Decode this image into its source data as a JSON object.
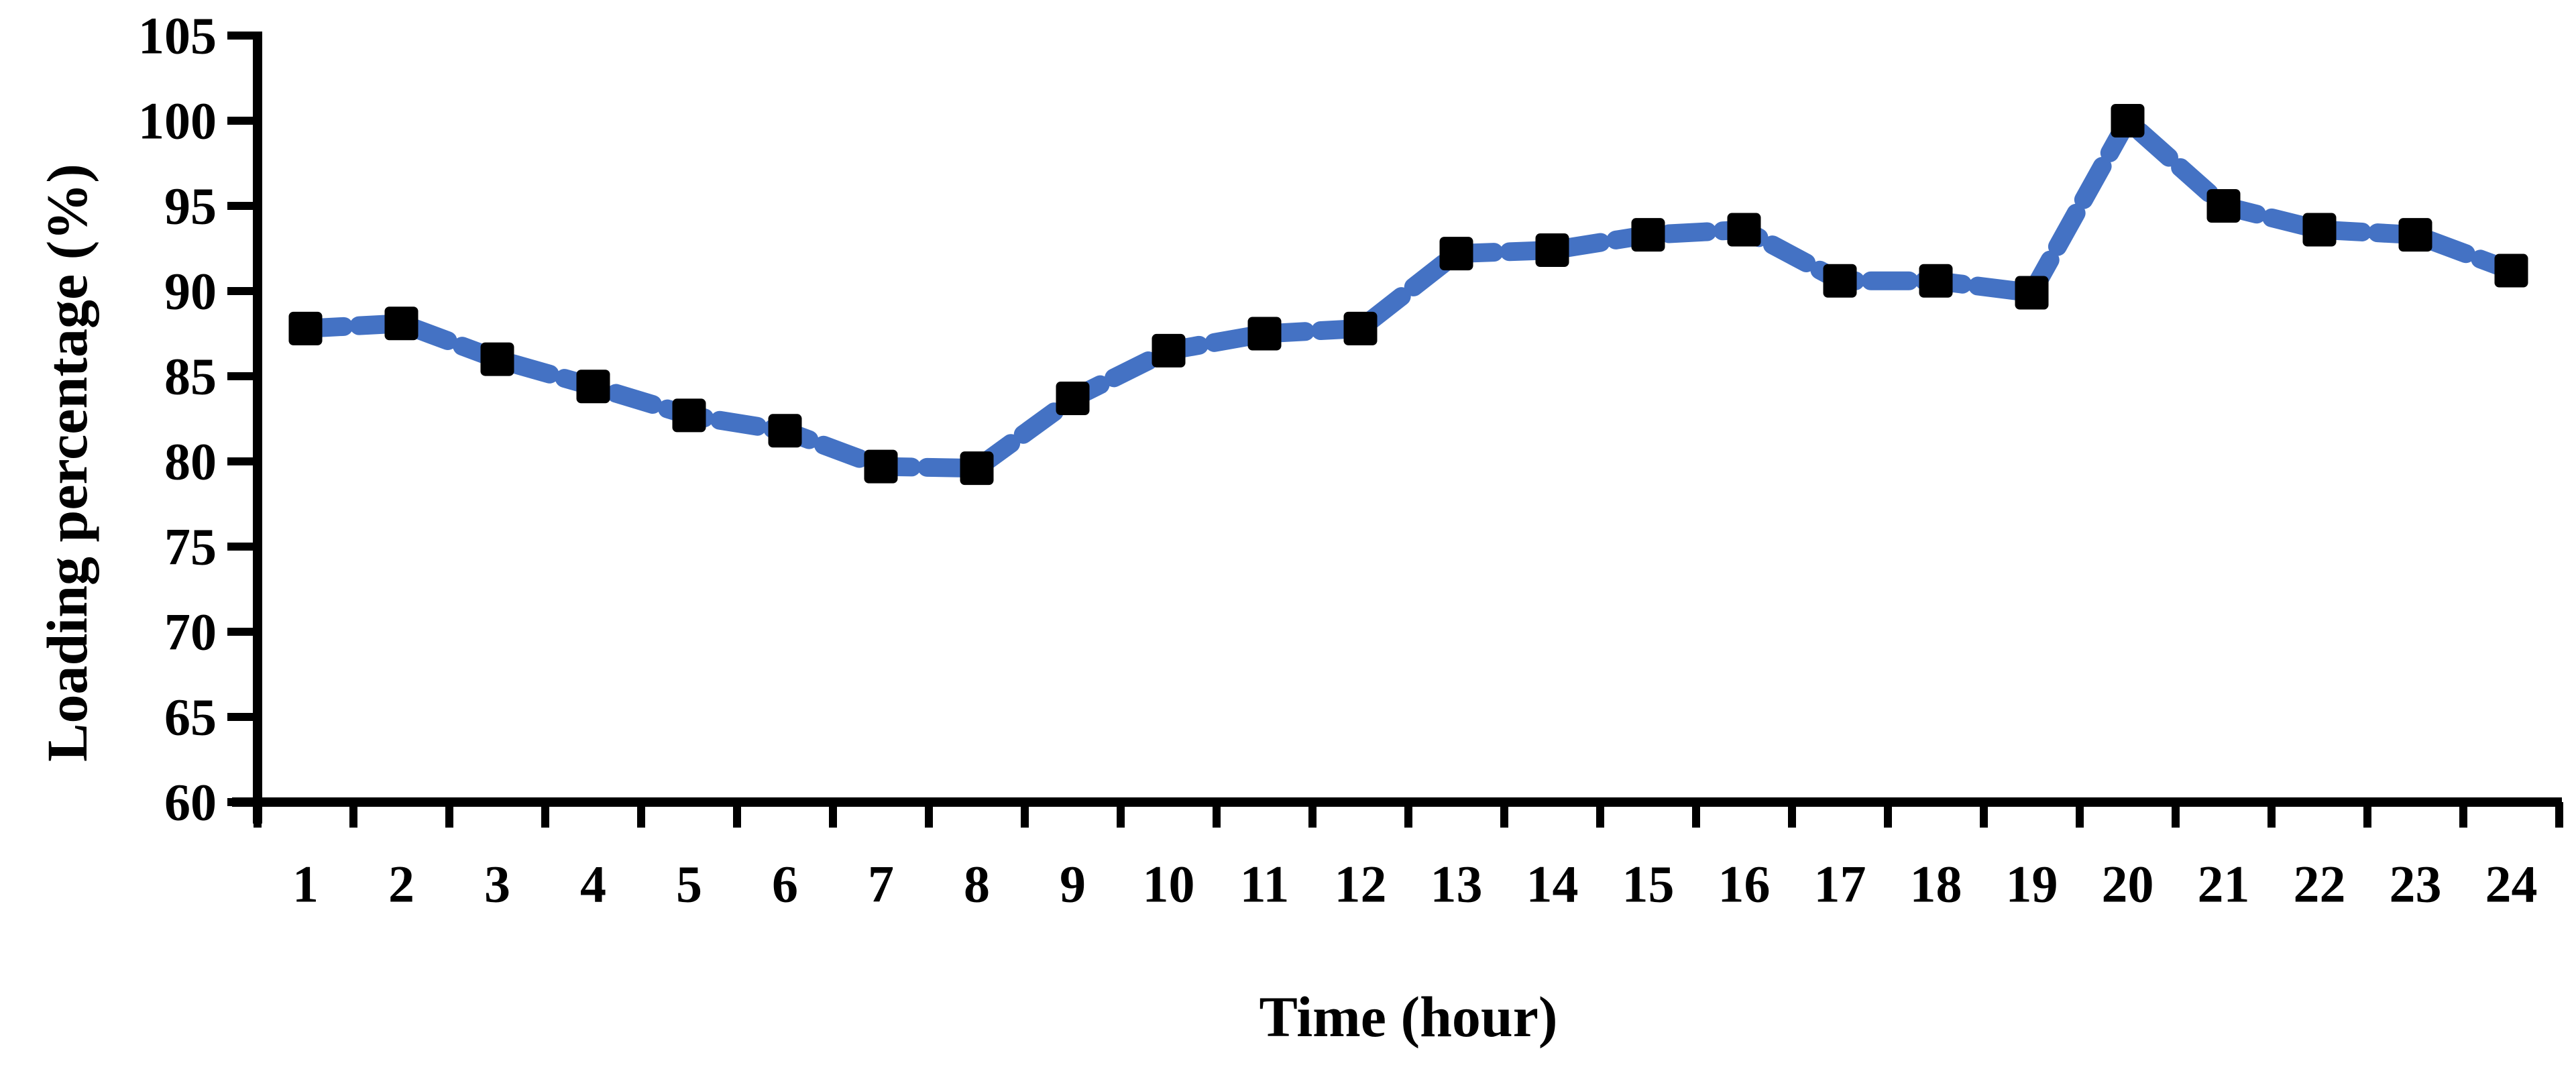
{
  "page": {
    "background": "#ffffff"
  },
  "chart_data": {
    "type": "line",
    "title": "",
    "xlabel": "Time (hour)",
    "ylabel": "Loading percentage (%)",
    "x": [
      1,
      2,
      3,
      4,
      5,
      6,
      7,
      8,
      9,
      10,
      11,
      12,
      13,
      14,
      15,
      16,
      17,
      18,
      19,
      20,
      21,
      22,
      23,
      24
    ],
    "yticks": [
      60,
      65,
      70,
      75,
      80,
      85,
      90,
      95,
      100,
      105
    ],
    "ylim": [
      60,
      105
    ],
    "grid": false,
    "legend": "none",
    "series": [
      {
        "values": [
          87.8,
          88.1,
          86.0,
          84.4,
          82.7,
          81.8,
          79.7,
          79.6,
          83.7,
          86.5,
          87.5,
          87.8,
          92.2,
          92.4,
          93.3,
          93.6,
          90.6,
          90.6,
          89.9,
          100,
          95,
          93.6,
          93.3,
          91.2
        ],
        "line_color": "#4472C4",
        "line_style": "dashed",
        "marker": "square",
        "marker_color": "#000000"
      }
    ]
  }
}
